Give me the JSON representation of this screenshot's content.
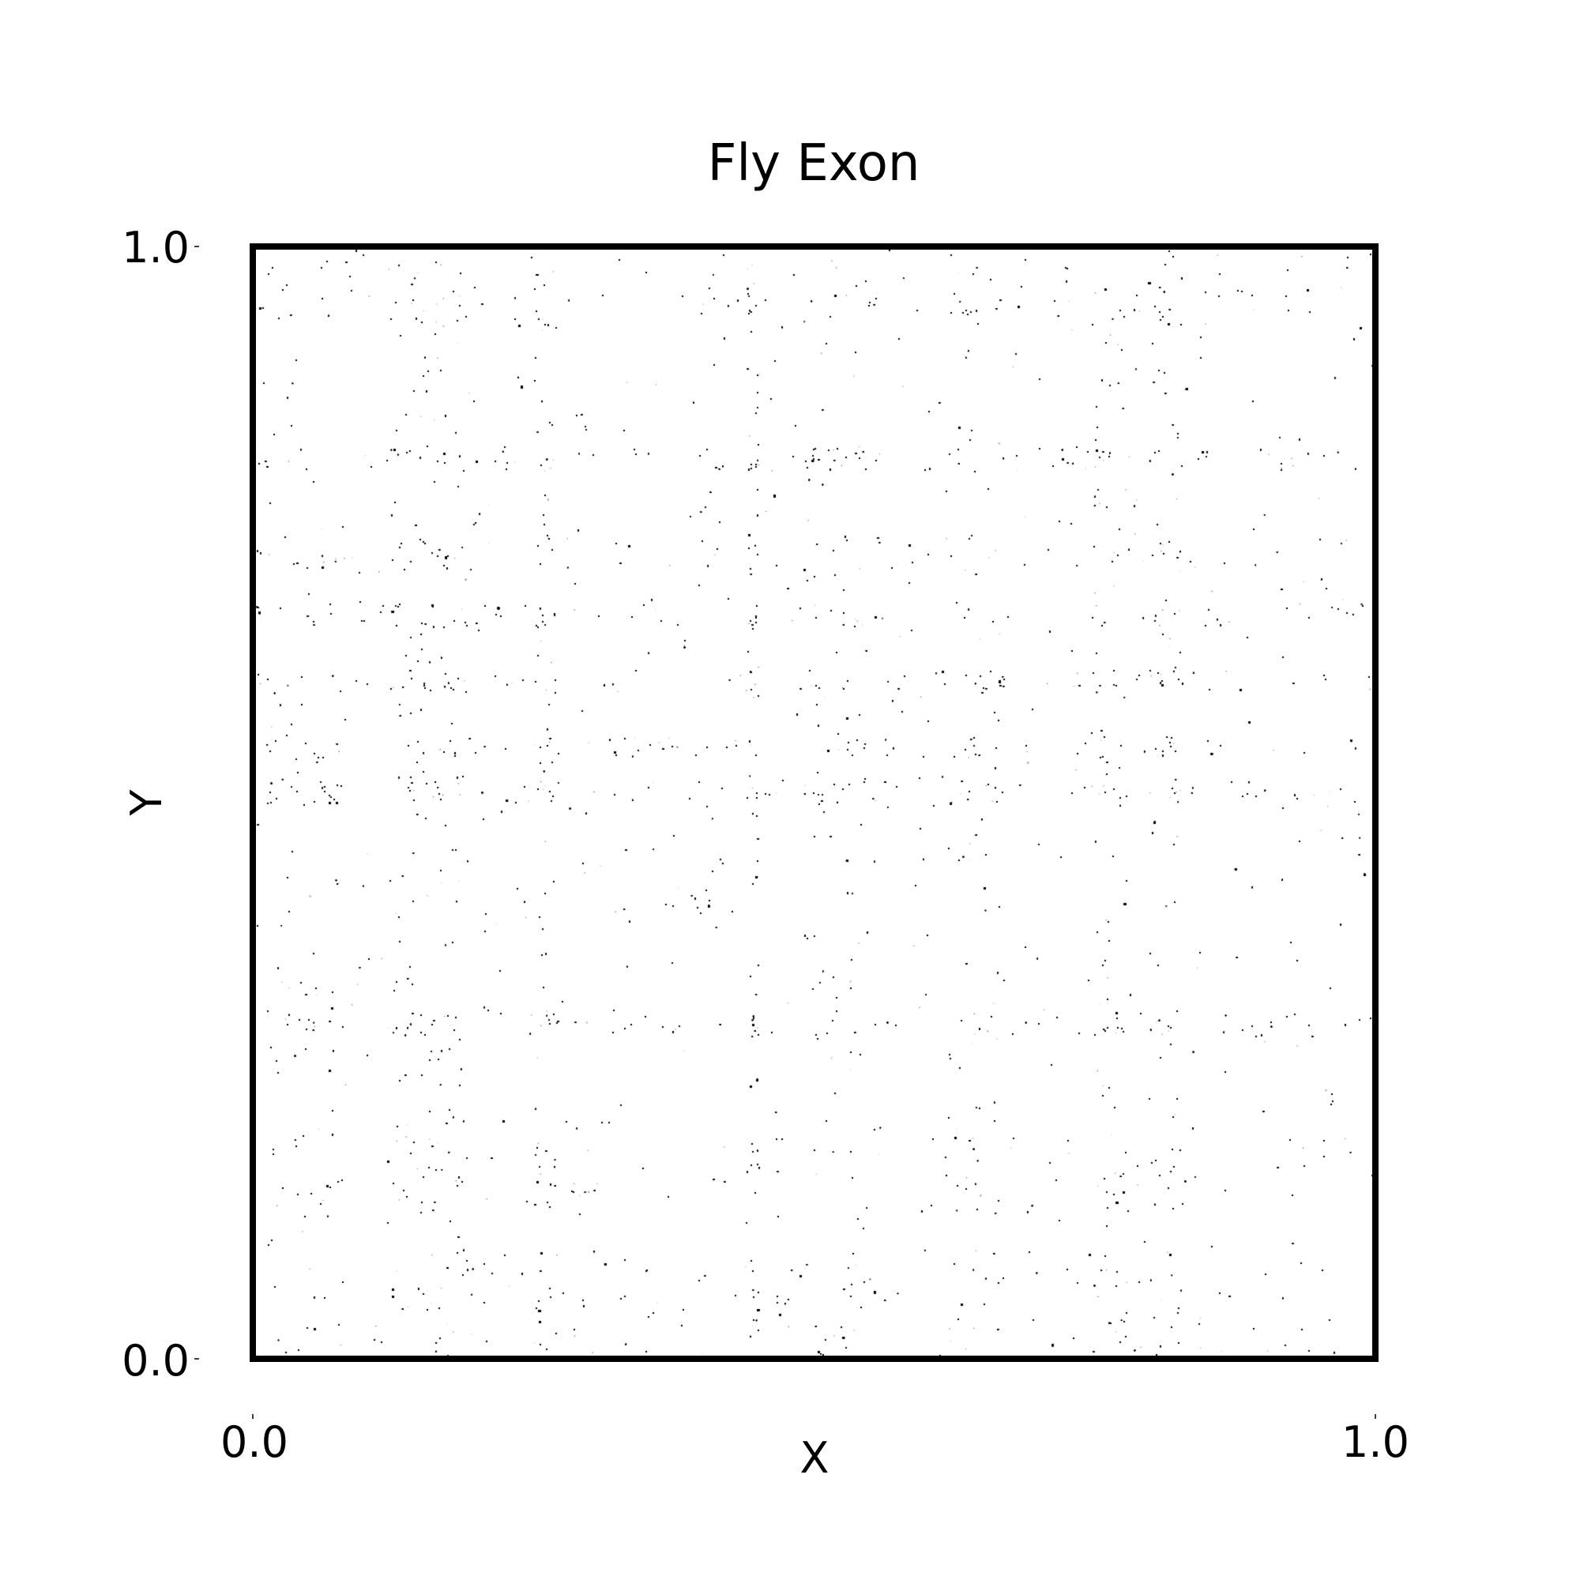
{
  "chart_data": {
    "type": "scatter",
    "title": "Fly Exon",
    "xlabel": "X",
    "ylabel": "Y",
    "xlim": [
      0.0,
      1.0
    ],
    "ylim": [
      0.0,
      1.0
    ],
    "x_ticks": [
      0.0,
      1.0
    ],
    "y_ticks": [
      0.0,
      1.0
    ],
    "x_tick_labels": [
      "0.0",
      "1.0"
    ],
    "y_tick_labels": [
      "0.0",
      "1.0"
    ],
    "grid": false,
    "legend": "none",
    "point_color": "#000000",
    "frame_color": "#000000",
    "background_color": "#ffffff",
    "description_of_data": "dense uniform scatter of tiny points with visibly darker vertical and horizontal bands",
    "density_bands_x": [
      [
        0.0,
        0.08,
        0.9
      ],
      [
        0.12,
        0.16,
        0.7
      ],
      [
        0.16,
        0.19,
        0.4
      ],
      [
        0.25,
        0.27,
        0.5
      ],
      [
        0.44,
        0.45,
        0.4
      ],
      [
        0.49,
        0.55,
        0.7
      ],
      [
        0.62,
        0.67,
        0.7
      ],
      [
        0.75,
        0.78,
        0.7
      ],
      [
        0.8,
        0.83,
        0.4
      ]
    ],
    "density_bands_y": [
      [
        0.0,
        0.08,
        0.9
      ],
      [
        0.13,
        0.2,
        0.6
      ],
      [
        0.29,
        0.31,
        0.4
      ],
      [
        0.5,
        0.52,
        0.8
      ],
      [
        0.54,
        0.56,
        0.6
      ],
      [
        0.6,
        0.62,
        0.5
      ],
      [
        0.66,
        0.68,
        0.6
      ],
      [
        0.71,
        0.74,
        0.6
      ],
      [
        0.8,
        0.82,
        0.5
      ],
      [
        0.93,
        1.0,
        0.6
      ]
    ]
  }
}
